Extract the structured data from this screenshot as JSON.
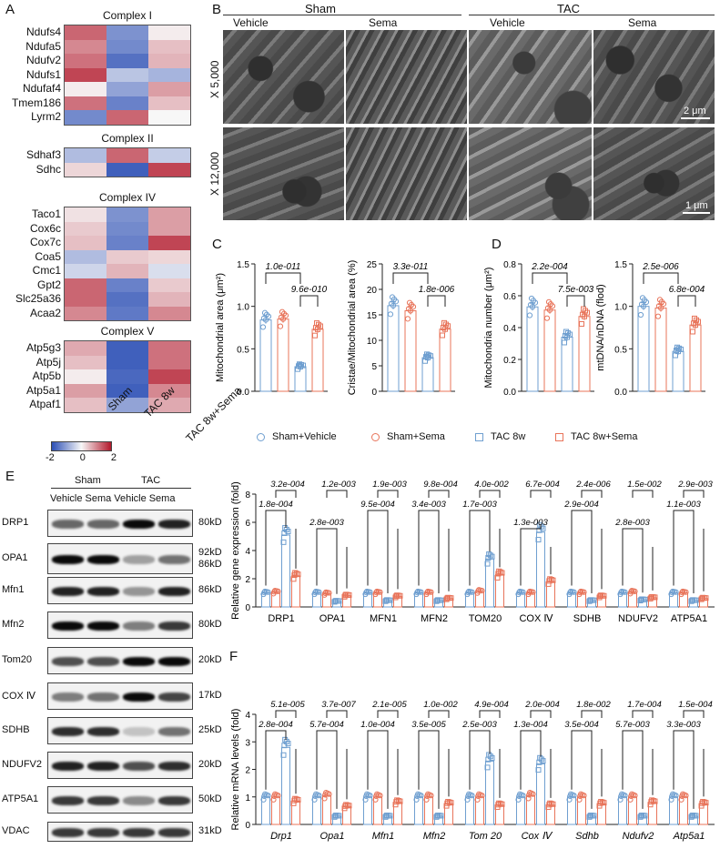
{
  "panels": {
    "A": "A",
    "B": "B",
    "C": "C",
    "D": "D",
    "E": "E",
    "F": "F"
  },
  "colors": {
    "heat_high": "#b2182b",
    "heat_mid": "#f7f7f7",
    "heat_low": "#2c4fb5",
    "sham_vehicle": "#6f9fd0",
    "sham_sema": "#e8745a",
    "tac": "#6f9fd0",
    "tac_sema": "#e8745a"
  },
  "heatmaps": [
    {
      "title": "Complex I",
      "rows": [
        "Ndufs4",
        "Ndufa5",
        "Ndufv2",
        "Ndufs1",
        "Ndufaf4",
        "Tmem186",
        "Lyrm2"
      ],
      "values": [
        [
          1.3,
          -1.2,
          0.1
        ],
        [
          1.0,
          -1.3,
          0.5
        ],
        [
          1.2,
          -1.6,
          0.6
        ],
        [
          1.6,
          -0.6,
          -0.8
        ],
        [
          0.1,
          -1.0,
          0.8
        ],
        [
          1.2,
          -1.4,
          0.5
        ],
        [
          -1.3,
          1.3,
          0.0
        ]
      ]
    },
    {
      "title": "Complex II",
      "rows": [
        "Sdhaf3",
        "Sdhc"
      ],
      "values": [
        [
          -0.7,
          1.3,
          -0.5
        ],
        [
          0.3,
          -1.8,
          1.6
        ]
      ]
    },
    {
      "title": "Complex IV",
      "rows": [
        "Taco1",
        "Cox6c",
        "Cox7c",
        "Coa5",
        "Cmc1",
        "Gpt2",
        "Slc25a36",
        "Acaa2"
      ],
      "values": [
        [
          0.2,
          -1.2,
          0.8
        ],
        [
          0.4,
          -1.3,
          0.8
        ],
        [
          0.5,
          -1.4,
          1.6
        ],
        [
          -0.7,
          0.4,
          0.3
        ],
        [
          -0.4,
          0.6,
          -0.3
        ],
        [
          1.3,
          -1.4,
          0.4
        ],
        [
          1.3,
          -1.6,
          0.6
        ],
        [
          1.0,
          -1.5,
          1.0
        ]
      ]
    },
    {
      "title": "Complex V",
      "rows": [
        "Atp5g3",
        "Atp5j",
        "Atp5b",
        "Atp5a1",
        "Atpaf1"
      ],
      "values": [
        [
          0.7,
          -1.8,
          1.2
        ],
        [
          0.5,
          -1.8,
          1.2
        ],
        [
          0.1,
          -1.7,
          1.6
        ],
        [
          0.8,
          -1.8,
          1.0
        ],
        [
          0.5,
          -1.0,
          0.7
        ]
      ]
    }
  ],
  "heatmap_cols": [
    "Sham",
    "TAC 8w",
    "TAC 8w+Sema"
  ],
  "colorbar": {
    "ticks": [
      "-2",
      "0",
      "2"
    ]
  },
  "em": {
    "groups": [
      {
        "label": "Sham",
        "subs": [
          "Vehicle",
          "Sema"
        ]
      },
      {
        "label": "TAC",
        "subs": [
          "Vehicle",
          "Sema"
        ]
      }
    ],
    "rows": [
      {
        "label": "X 5,000",
        "scale": "2 μm"
      },
      {
        "label": "X 12,000",
        "scale": "1 μm"
      }
    ]
  },
  "legend": [
    "Sham+Vehicle",
    "Sham+Sema",
    "TAC 8w",
    "TAC 8w+Sema"
  ],
  "wb": {
    "groups": [
      "Sham",
      "TAC"
    ],
    "subs": [
      "Vehicle",
      "Sema",
      "Vehicle",
      "Sema"
    ],
    "proteins": [
      {
        "name": "DRP1",
        "kd": "80kD"
      },
      {
        "name": "OPA1",
        "kd": "92kD",
        "kd2": "86kD"
      },
      {
        "name": "Mfn1",
        "kd": "86kD"
      },
      {
        "name": "Mfn2",
        "kd": "80kD"
      },
      {
        "name": "Tom20",
        "kd": "20kD"
      },
      {
        "name": "COX Ⅳ",
        "kd": "17kD"
      },
      {
        "name": "SDHB",
        "kd": "25kD"
      },
      {
        "name": "NDUFV2",
        "kd": "20kD"
      },
      {
        "name": "ATP5A1",
        "kd": "50kD"
      },
      {
        "name": "VDAC",
        "kd": "31kD"
      }
    ]
  },
  "chart_data": [
    {
      "id": "C1",
      "type": "bar",
      "ylabel": "Mitochondrial area (μm²)",
      "ylim": [
        0,
        1.5
      ],
      "yticks": [
        "0.0",
        "0.5",
        "1.0",
        "1.5"
      ],
      "values": [
        0.84,
        0.85,
        0.29,
        0.73
      ],
      "annotations": [
        {
          "from": 0,
          "to": 2,
          "text": "1.0e-011"
        },
        {
          "from": 2,
          "to": 3,
          "text": "9.6e-010"
        }
      ]
    },
    {
      "id": "C2",
      "type": "bar",
      "ylabel": "Cristae/Mitochondrial area (%)",
      "ylim": [
        0,
        25
      ],
      "yticks": [
        "0",
        "5",
        "10",
        "15",
        "20",
        "25"
      ],
      "values": [
        16.8,
        15.8,
        6.6,
        12.2
      ],
      "annotations": [
        {
          "from": 0,
          "to": 2,
          "text": "3.3e-011"
        },
        {
          "from": 2,
          "to": 3,
          "text": "1.8e-006"
        }
      ]
    },
    {
      "id": "D1",
      "type": "bar",
      "ylabel": "Mitochondria number (μm²)",
      "ylim": [
        0,
        0.8
      ],
      "yticks": [
        "0.0",
        "0.2",
        "0.4",
        "0.6",
        "0.8"
      ],
      "values": [
        0.53,
        0.51,
        0.34,
        0.47
      ],
      "annotations": [
        {
          "from": 0,
          "to": 2,
          "text": "2.2e-004"
        },
        {
          "from": 2,
          "to": 3,
          "text": "7.5e-003"
        }
      ]
    },
    {
      "id": "D2",
      "type": "bar",
      "ylabel": "mtDNA/nDNA (flod)",
      "ylim": [
        0,
        1.5
      ],
      "yticks": [
        "0.0",
        "0.5",
        "1.0",
        "1.5"
      ],
      "values": [
        1.0,
        0.98,
        0.47,
        0.78
      ],
      "annotations": [
        {
          "from": 0,
          "to": 2,
          "text": "2.5e-006"
        },
        {
          "from": 2,
          "to": 3,
          "text": "6.8e-004"
        }
      ]
    },
    {
      "id": "E",
      "type": "bar",
      "ylabel": "Relative gene expression (fold)",
      "ylim": [
        0,
        8
      ],
      "yticks": [
        "0",
        "2",
        "4",
        "6",
        "8"
      ],
      "categories": [
        "DRP1",
        "OPA1",
        "MFN1",
        "MFN2",
        "TOM20",
        "COX Ⅳ",
        "SDHB",
        "NDUFV2",
        "ATP5A1"
      ],
      "series": [
        [
          1.0,
          1.0,
          1.0,
          1.0,
          1.0,
          1.0,
          1.0,
          1.0,
          1.0
        ],
        [
          1.05,
          0.95,
          1.0,
          1.0,
          1.1,
          1.0,
          1.0,
          1.05,
          1.0
        ],
        [
          5.1,
          0.4,
          0.45,
          0.45,
          3.4,
          5.3,
          0.45,
          0.5,
          0.45
        ],
        [
          2.2,
          0.8,
          0.75,
          0.6,
          2.3,
          1.8,
          0.75,
          0.65,
          0.6
        ]
      ],
      "p_top": [
        "3.2e-004",
        "1.2e-003",
        "1.9e-003",
        "9.8e-004",
        "4.0e-002",
        "6.7e-004",
        "2.4e-006",
        "1.5e-002",
        "2.9e-003"
      ],
      "p_mid": [
        "1.8e-004",
        "2.8e-003",
        "9.5e-004",
        "3.4e-003",
        "1.7e-003",
        "1.3e-003",
        "2.9e-004",
        "2.8e-003",
        "1.1e-003"
      ],
      "p_mid_offset": [
        0,
        1,
        0,
        0,
        0,
        1,
        0,
        1,
        0
      ]
    },
    {
      "id": "F",
      "type": "bar",
      "ylabel": "Relative mRNA levels (fold)",
      "ylim": [
        0,
        4
      ],
      "yticks": [
        "0",
        "1",
        "2",
        "3",
        "4"
      ],
      "categories": [
        "Drp1",
        "Opa1",
        "Mfn1",
        "Mfn2",
        "Tom 20",
        "Cox Ⅳ",
        "Sdhb",
        "Ndufv2",
        "Atp5a1"
      ],
      "series": [
        [
          1.0,
          1.0,
          1.0,
          1.0,
          1.0,
          1.0,
          1.0,
          1.0,
          1.0
        ],
        [
          1.0,
          1.05,
          1.0,
          1.0,
          1.0,
          1.05,
          1.0,
          1.0,
          1.0
        ],
        [
          2.8,
          0.3,
          0.3,
          0.3,
          2.3,
          2.2,
          0.3,
          0.3,
          0.3
        ],
        [
          0.85,
          0.65,
          0.8,
          0.75,
          0.7,
          0.7,
          0.75,
          0.8,
          0.75
        ]
      ],
      "p_top": [
        "5.1e-005",
        "3.7e-007",
        "2.1e-005",
        "1.0e-002",
        "4.9e-004",
        "2.0e-004",
        "1.8e-002",
        "1.7e-004",
        "1.5e-004"
      ],
      "p_mid": [
        "2.8e-004",
        "5.7e-004",
        "1.0e-004",
        "3.5e-005",
        "2.5e-003",
        "1.3e-004",
        "3.5e-004",
        "5.7e-003",
        "3.3e-003"
      ]
    }
  ]
}
